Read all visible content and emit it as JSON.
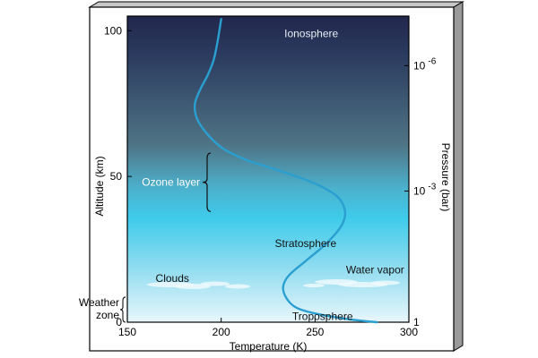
{
  "chart_data": {
    "type": "line",
    "xlabel": "Temperature (K)",
    "ylabel": "Altitude (km)",
    "right_axis_label": "Pressure (bar)",
    "xlim": [
      150,
      300
    ],
    "ylim": [
      0,
      105
    ],
    "x_ticks": [
      "150",
      "200",
      "250",
      "300"
    ],
    "y_ticks": [
      "0",
      "50",
      "100"
    ],
    "pressure_ticks": [
      {
        "base": "1",
        "exp": "",
        "altitude": 0
      },
      {
        "base": "10",
        "exp": "-3",
        "altitude": 45
      },
      {
        "base": "10",
        "exp": "-6",
        "altitude": 88
      }
    ],
    "series": [
      {
        "x": [
          283,
          268,
          250,
          240,
          235,
          233,
          236,
          245,
          256,
          264,
          266,
          262,
          252,
          240,
          226,
          212,
          200,
          192,
          187,
          186,
          189,
          193,
          196,
          198,
          200
        ],
        "y": [
          0,
          1,
          3,
          5,
          8,
          12,
          16,
          21,
          27,
          33,
          38,
          43,
          47,
          50,
          53,
          56,
          60,
          65,
          70,
          75,
          80,
          85,
          90,
          96,
          104
        ]
      }
    ],
    "region_labels": [
      {
        "text": "Ionosphere",
        "x": 248,
        "y": 99
      },
      {
        "text": "Stratosphere",
        "x": 245,
        "y": 27
      },
      {
        "text": "Clouds",
        "x": 174,
        "y": 15
      },
      {
        "text": "Water vapor",
        "x": 282,
        "y": 18
      },
      {
        "text": "Troposphere",
        "x": 254,
        "y": 2
      }
    ],
    "brackets": [
      {
        "text": "Ozone layer",
        "y_from": 38,
        "y_to": 58
      },
      {
        "text": "Weather",
        "text2": "zone",
        "y_from": 0,
        "y_to": 8
      }
    ],
    "colors": {
      "curve": "#2a9fd0",
      "sky_top": "#1f2448",
      "sky_mid": "#4c7488",
      "sky_low": "#48cae8",
      "sky_bottom": "#dff3fa",
      "box_side": "#9a9a9a",
      "box_edge": "#000000"
    }
  }
}
